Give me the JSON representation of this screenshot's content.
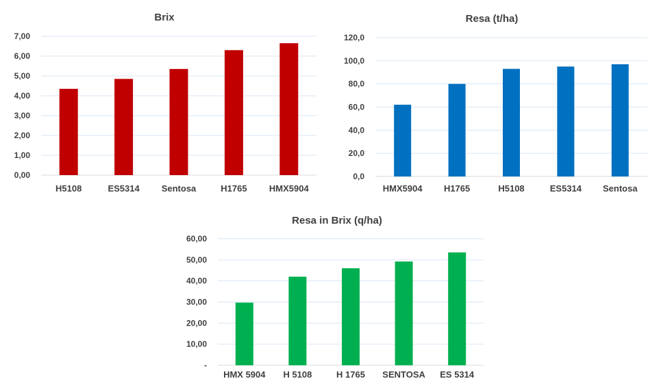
{
  "chart_data": [
    {
      "type": "bar",
      "title": "Brix",
      "categories": [
        "H5108",
        "ES5314",
        "Sentosa",
        "H1765",
        "HMX5904"
      ],
      "values": [
        4.35,
        4.85,
        5.35,
        6.3,
        6.65
      ],
      "ylim": [
        0,
        7
      ],
      "yticks": [
        "0,00",
        "1,00",
        "2,00",
        "3,00",
        "4,00",
        "5,00",
        "6,00",
        "7,00"
      ],
      "xlabel": "",
      "ylabel": "",
      "color": "#c00000",
      "grid": true
    },
    {
      "type": "bar",
      "title": "Resa (t/ha)",
      "categories": [
        "HMX5904",
        "H1765",
        "H5108",
        "ES5314",
        "Sentosa"
      ],
      "values": [
        62,
        80,
        93,
        95,
        97
      ],
      "ylim": [
        0,
        120
      ],
      "yticks": [
        "0,0",
        "20,0",
        "40,0",
        "60,0",
        "80,0",
        "100,0",
        "120,0"
      ],
      "xlabel": "",
      "ylabel": "",
      "color": "#0070c0",
      "grid": true
    },
    {
      "type": "bar",
      "title": "Resa in Brix (q/ha)",
      "categories": [
        "HMX 5904",
        "H 5108",
        "H 1765",
        "SENTOSA",
        "ES 5314"
      ],
      "values": [
        29.7,
        42,
        46,
        49.2,
        53.5
      ],
      "ylim": [
        0,
        60
      ],
      "yticks": [
        "-",
        "10,00",
        "20,00",
        "30,00",
        "40,00",
        "50,00",
        "60,00"
      ],
      "xlabel": "",
      "ylabel": "",
      "color": "#00b050",
      "grid": true
    }
  ]
}
